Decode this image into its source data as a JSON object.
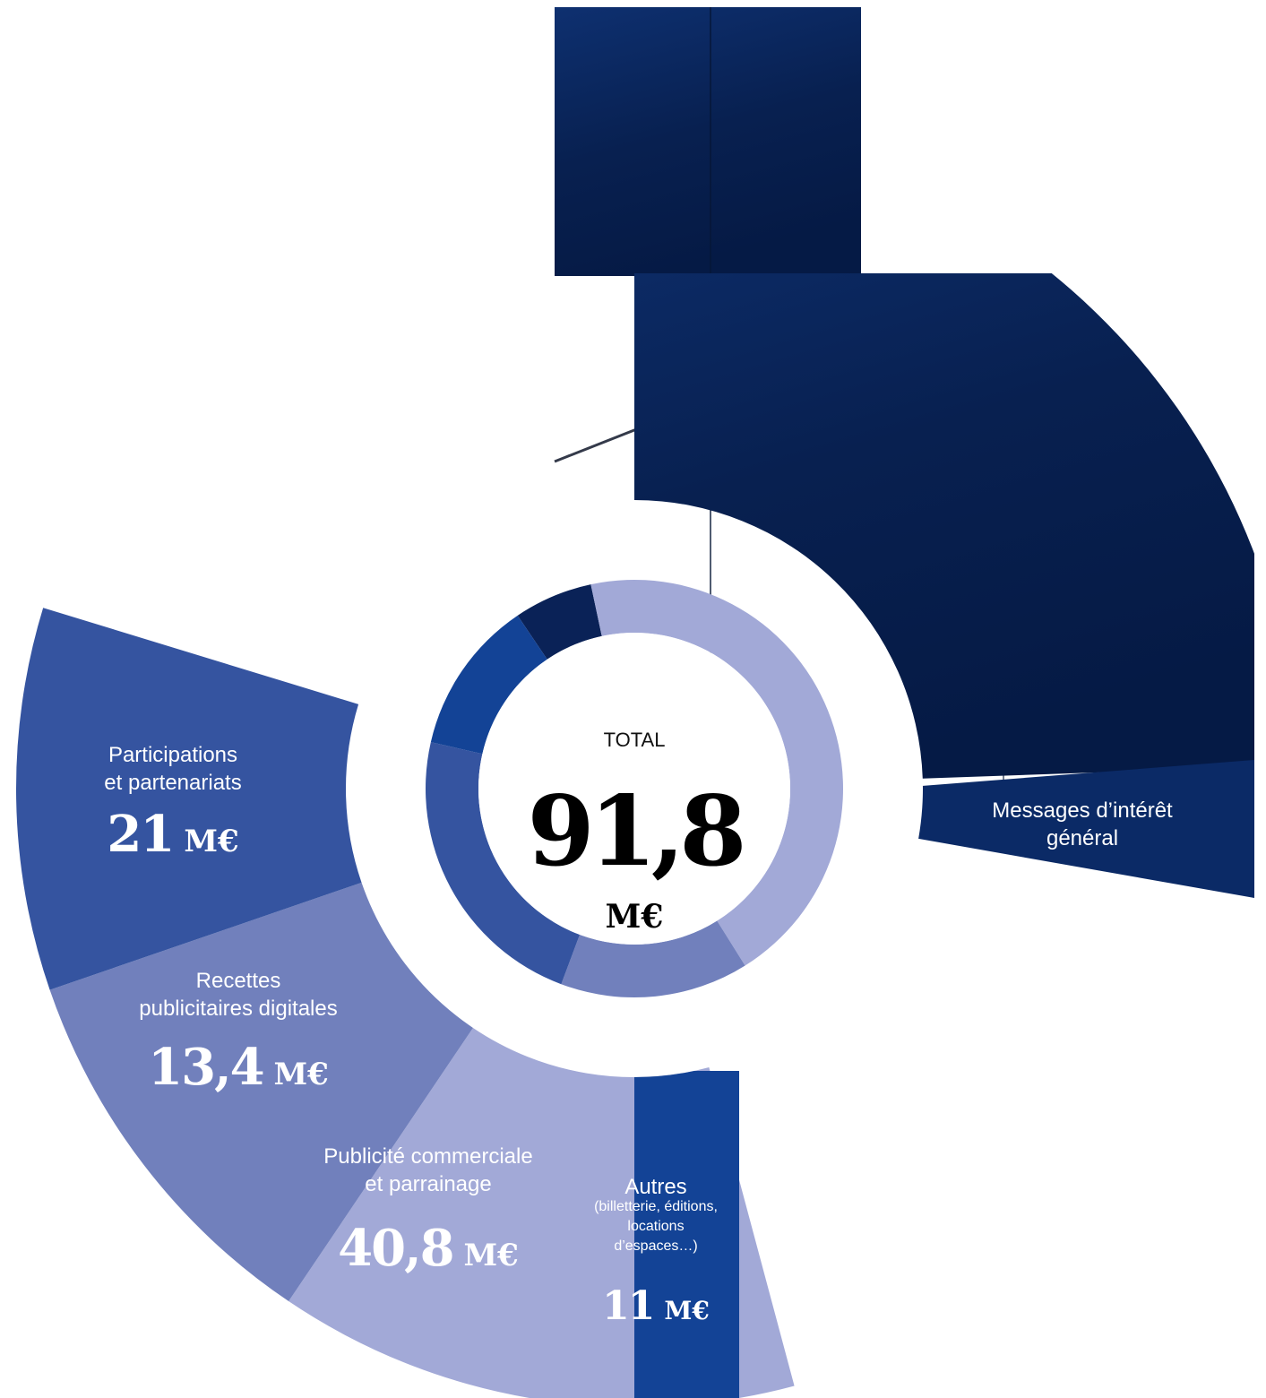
{
  "chart_data": {
    "type": "pie",
    "title": "",
    "total": {
      "label": "TOTAL",
      "value": "91,8",
      "unit": "M€"
    },
    "unit": "M€",
    "slices": [
      {
        "label": "Messages d’intérêt général",
        "label_lines": [
          "Messages d’intérêt",
          "général"
        ],
        "sublabel_lines": [],
        "value": 5.6,
        "value_text": "5,6",
        "color": "#0a2257"
      },
      {
        "label": "Publicité commerciale et parrainage",
        "label_lines": [
          "Publicité commerciale",
          "et parrainage"
        ],
        "sublabel_lines": [],
        "value": 40.8,
        "value_text": "40,8",
        "color": "#a2a9d7"
      },
      {
        "label": "Recettes publicitaires digitales",
        "label_lines": [
          "Recettes",
          "publicitaires digitales"
        ],
        "sublabel_lines": [],
        "value": 13.4,
        "value_text": "13,4",
        "color": "#7180bc"
      },
      {
        "label": "Participations et partenariats",
        "label_lines": [
          "Participations",
          "et partenariats"
        ],
        "sublabel_lines": [],
        "value": 21,
        "value_text": "21",
        "color": "#3554a0"
      },
      {
        "label": "Autres",
        "label_lines": [
          "Autres"
        ],
        "sublabel_lines": [
          "(billetterie, éditions,",
          "locations",
          "d’espaces…)"
        ],
        "value": 11,
        "value_text": "11",
        "color": "#134396"
      }
    ]
  }
}
